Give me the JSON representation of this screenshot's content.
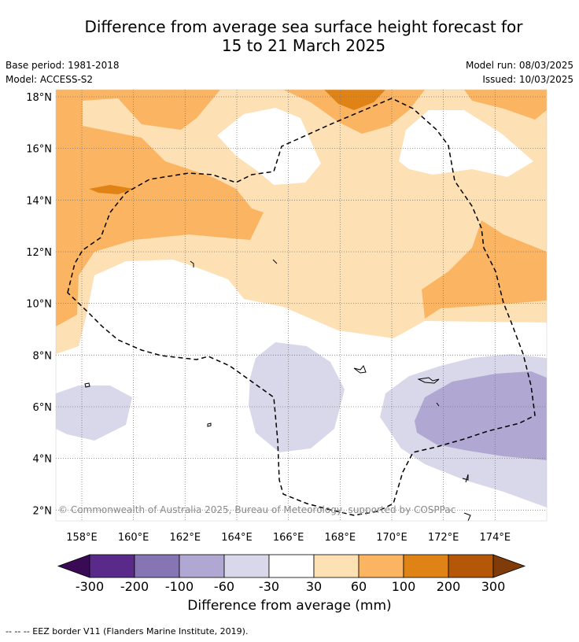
{
  "title_line1": "Difference from average sea surface height forecast for",
  "title_line2": "15 to 21 March 2025",
  "meta_left": {
    "base_period": "Base period: 1981-2018",
    "model": "Model: ACCESS-S2"
  },
  "meta_right": {
    "model_run": "Model run: 08/03/2025",
    "issued": "Issued: 10/03/2025"
  },
  "lat_labels": [
    "18°N",
    "16°N",
    "14°N",
    "12°N",
    "10°N",
    "8°N",
    "6°N",
    "4°N",
    "2°N"
  ],
  "lon_labels": [
    "158°E",
    "160°E",
    "162°E",
    "164°E",
    "166°E",
    "168°E",
    "170°E",
    "172°E",
    "174°E"
  ],
  "copyright": "© Commonwealth of Australia 2025, Bureau of Meteorology, supported by COSPPac",
  "colorbar": {
    "ticks": [
      "-300",
      "-200",
      "-100",
      "-60",
      "-30",
      "30",
      "60",
      "100",
      "200",
      "300"
    ],
    "colors": [
      "#3b0a55",
      "#5a2a8a",
      "#8575b2",
      "#b0a8d2",
      "#d8d8ea",
      "#ffffff",
      "#fde0b4",
      "#fbb562",
      "#e08316",
      "#b45708",
      "#7f3b08"
    ],
    "label": "Difference from average (mm)"
  },
  "footer": "--  --  -- EEZ border V11 (Flanders Marine Institute, 2019).",
  "chart_data": {
    "type": "heatmap",
    "title": "Difference from average sea surface height forecast for 15 to 21 March 2025",
    "lon_range": [
      157,
      176
    ],
    "lat_range": [
      1.5,
      18.2
    ],
    "grid": true,
    "units": "mm",
    "levels": [
      -300,
      -200,
      -100,
      -60,
      -30,
      30,
      60,
      100,
      200,
      300
    ],
    "field_summary": [
      {
        "region": "north and west",
        "band": "30 to 100"
      },
      {
        "region": "pockets near 18°N 168-170°E, 14.5°N 160°E",
        "band": "100 to 200"
      },
      {
        "region": "central band 2-10°N",
        "band": "-30 to 30"
      },
      {
        "region": "7°N 158-160°E, 6°N 166-168°E, south-east",
        "band": "-60 to -30"
      },
      {
        "region": "5-7°N 172-176°E",
        "band": "-100 to -60"
      }
    ]
  }
}
